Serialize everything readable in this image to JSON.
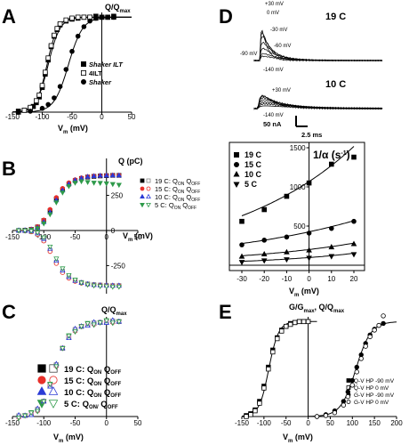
{
  "figure": {
    "panels": {
      "A": {
        "label": "A",
        "ylabel": "Q/Q",
        "ylabel_sub": "max",
        "xlabel": "V",
        "xlabel_sub": "m",
        "xlabel_unit": " (mV)"
      },
      "B": {
        "label": "B",
        "ylabel": "Q (pC)",
        "xlabel": "V",
        "xlabel_sub": "m",
        "xlabel_unit": " (mV)"
      },
      "C": {
        "label": "C",
        "ylabel": "Q/Q",
        "ylabel_sub": "max",
        "xlabel": "V",
        "xlabel_sub": "m",
        "xlabel_unit": " (mV)"
      },
      "D": {
        "label": "D",
        "ylabel": "1/α (s",
        "ylabel_sup": "-1",
        "ylabel_end": ")",
        "xlabel": "V",
        "xlabel_sub": "m",
        "xlabel_unit": " (mV)"
      },
      "E": {
        "label": "E",
        "ylabel": "G/G",
        "ylabel_sub": "max",
        "ylabel_2": ", Q/Q",
        "ylabel_2_sub": "max",
        "xlabel": "V",
        "xlabel_sub": "m",
        "xlabel_unit": " (mV)"
      }
    },
    "traces": {
      "top_title": "19 C",
      "bottom_title": "10 C",
      "top_annotations": [
        "+30 mV",
        "0 mV",
        "-30 mV",
        "-60 mV",
        "-90 mV",
        "-140 mV"
      ],
      "bottom_annotations": [
        "+30 mV",
        "-140 mV"
      ],
      "scale_current": "50 nA",
      "scale_time": "2.5 ms"
    },
    "colors": {
      "red": "#e8302a",
      "blue": "#2b3bd6",
      "green": "#2e9a4a",
      "pink": "#e97bd0",
      "black": "#000000"
    }
  },
  "chart_data": [
    {
      "id": "A",
      "type": "scatter",
      "xlim": [
        -150,
        50
      ],
      "ylim": [
        0,
        1.05
      ],
      "xticks": [
        -150,
        -100,
        -50,
        0,
        50
      ],
      "legend": [
        "Shaker ILT",
        "4ILT",
        "Shaker"
      ],
      "series": [
        {
          "name": "Shaker ILT",
          "marker": "square-filled",
          "x": [
            -140,
            -130,
            -120,
            -115,
            -110,
            -105,
            -100,
            -95,
            -90,
            -85,
            -80,
            -75,
            -70,
            -60,
            -50,
            -40,
            -30,
            -20,
            -10,
            0,
            10,
            20
          ],
          "y": [
            0.01,
            0.02,
            0.04,
            0.06,
            0.1,
            0.16,
            0.26,
            0.4,
            0.55,
            0.69,
            0.8,
            0.87,
            0.92,
            0.96,
            0.98,
            0.99,
            1.0,
            1.0,
            1.01,
            1.0,
            1.0,
            1.01
          ]
        },
        {
          "name": "4ILT",
          "marker": "square-open",
          "x": [
            -140,
            -130,
            -120,
            -110,
            -105,
            -100,
            -95,
            -90,
            -85,
            -80,
            -75,
            -70,
            -60,
            -50,
            -40,
            -30,
            -20,
            -10,
            0,
            10,
            20
          ],
          "y": [
            0.0,
            0.02,
            0.05,
            0.12,
            0.18,
            0.28,
            0.42,
            0.57,
            0.7,
            0.81,
            0.88,
            0.93,
            0.97,
            0.99,
            1.0,
            1.0,
            1.0,
            0.99,
            1.0,
            1.0,
            1.0
          ]
        },
        {
          "name": "Shaker",
          "marker": "circle-filled",
          "x": [
            -140,
            -120,
            -100,
            -90,
            -80,
            -70,
            -60,
            -50,
            -40,
            -30,
            -20,
            -10,
            0,
            10,
            20
          ],
          "y": [
            0.0,
            0.01,
            0.04,
            0.08,
            0.15,
            0.27,
            0.45,
            0.64,
            0.8,
            0.9,
            0.96,
            0.99,
            1.0,
            1.0,
            1.0
          ]
        }
      ]
    },
    {
      "id": "B",
      "type": "scatter",
      "xlim": [
        -150,
        50
      ],
      "ylim": [
        -450,
        500
      ],
      "xticks": [
        -150,
        -100,
        -50,
        0,
        50
      ],
      "yticks": [
        -250,
        0,
        250
      ],
      "legend": [
        {
          "text": "19 C: Q",
          "sub1": "ON",
          "mid": " Q",
          "sub2": "OFF"
        },
        {
          "text": "15 C: Q",
          "sub1": "ON",
          "mid": " Q",
          "sub2": "OFF"
        },
        {
          "text": "10 C: Q",
          "sub1": "ON",
          "mid": " Q",
          "sub2": "OFF"
        },
        {
          "text": "5 C: Q",
          "sub1": "ON",
          "mid": " Q",
          "sub2": "OFF"
        }
      ],
      "x": [
        -140,
        -130,
        -120,
        -110,
        -100,
        -90,
        -80,
        -70,
        -60,
        -50,
        -40,
        -30,
        -20,
        -10,
        0,
        10,
        20
      ],
      "series": [
        {
          "name": "19 C Q_ON",
          "y": [
            0,
            2,
            8,
            25,
            70,
            140,
            225,
            290,
            330,
            355,
            370,
            380,
            385,
            388,
            390,
            392,
            392
          ]
        },
        {
          "name": "19 C Q_OFF",
          "y": [
            0,
            -2,
            -8,
            -25,
            -70,
            -140,
            -225,
            -290,
            -330,
            -355,
            -370,
            -380,
            -385,
            -388,
            -390,
            -392,
            -392
          ]
        },
        {
          "name": "15 C Q_ON",
          "y": [
            0,
            3,
            10,
            28,
            75,
            150,
            235,
            300,
            340,
            362,
            375,
            383,
            388,
            390,
            392,
            393,
            393
          ]
        },
        {
          "name": "15 C Q_OFF",
          "y": [
            0,
            -3,
            -10,
            -28,
            -75,
            -150,
            -235,
            -300,
            -340,
            -362,
            -375,
            -383,
            -388,
            -390,
            -392,
            -393,
            -393
          ]
        },
        {
          "name": "10 C Q_ON",
          "y": [
            0,
            2,
            6,
            20,
            60,
            130,
            215,
            285,
            330,
            358,
            372,
            382,
            387,
            390,
            391,
            392,
            392
          ]
        },
        {
          "name": "10 C Q_OFF",
          "y": [
            0,
            -2,
            -6,
            -20,
            -60,
            -130,
            -215,
            -285,
            -330,
            -358,
            -372,
            -382,
            -387,
            -390,
            -391,
            -392,
            -392
          ]
        },
        {
          "name": "5 C Q_ON",
          "y": [
            0,
            1,
            4,
            15,
            50,
            115,
            200,
            270,
            315,
            340,
            350,
            345,
            340,
            338,
            335,
            330,
            325
          ]
        },
        {
          "name": "5 C Q_OFF",
          "y": [
            0,
            -1,
            -4,
            -15,
            -50,
            -115,
            -200,
            -270,
            -318,
            -350,
            -372,
            -385,
            -392,
            -396,
            -398,
            -400,
            -400
          ]
        }
      ]
    },
    {
      "id": "C",
      "type": "scatter",
      "xlim": [
        -150,
        50
      ],
      "ylim": [
        0,
        1.05
      ],
      "xticks": [
        -150,
        -100,
        -50,
        0,
        50
      ],
      "legend": [
        {
          "text": "19 C: Q",
          "sub1": "ON",
          "mid": " Q",
          "sub2": "OFF"
        },
        {
          "text": "15 C: Q",
          "sub1": "ON",
          "mid": " Q",
          "sub2": "OFF"
        },
        {
          "text": "10 C: Q",
          "sub1": "ON",
          "mid": " Q",
          "sub2": "OFF"
        },
        {
          "text": "5 C: Q",
          "sub1": "ON/",
          "mid": " Q",
          "sub2": "OFF"
        }
      ],
      "x": [
        -140,
        -130,
        -120,
        -110,
        -100,
        -90,
        -80,
        -70,
        -60,
        -50,
        -40,
        -30,
        -20,
        -10,
        0,
        10,
        20
      ],
      "y": [
        0.0,
        0.01,
        0.03,
        0.07,
        0.16,
        0.33,
        0.54,
        0.72,
        0.84,
        0.91,
        0.95,
        0.97,
        0.98,
        0.99,
        1.0,
        1.0,
        1.0
      ]
    },
    {
      "id": "D",
      "type": "scatter",
      "xlim": [
        -30,
        20
      ],
      "ylim": [
        0,
        1500
      ],
      "xticks": [
        -30,
        -20,
        -10,
        0,
        10,
        20
      ],
      "yticks": [
        500,
        1000,
        1500
      ],
      "legend": [
        "19 C",
        "15 C",
        "10 C",
        "5 C"
      ],
      "series": [
        {
          "name": "19 C",
          "marker": "square-filled",
          "x": [
            -30,
            -20,
            -10,
            0,
            10,
            20
          ],
          "y": [
            560,
            710,
            880,
            1050,
            1290,
            1380
          ]
        },
        {
          "name": "15 C",
          "marker": "circle-filled",
          "x": [
            -30,
            -20,
            -10,
            0,
            10,
            20
          ],
          "y": [
            260,
            320,
            360,
            410,
            470,
            560
          ]
        },
        {
          "name": "10 C",
          "marker": "triangle-up-filled",
          "x": [
            -30,
            -20,
            -10,
            0,
            10,
            20
          ],
          "y": [
            110,
            140,
            165,
            190,
            230,
            270
          ]
        },
        {
          "name": "5 C",
          "marker": "triangle-down-filled",
          "x": [
            -30,
            -20,
            -10,
            0,
            10,
            20
          ],
          "y": [
            40,
            60,
            75,
            95,
            115,
            140
          ]
        }
      ]
    },
    {
      "id": "E",
      "type": "scatter",
      "xlim": [
        -150,
        200
      ],
      "ylim": [
        0,
        1.05
      ],
      "xticks": [
        -150,
        -100,
        -50,
        0,
        50,
        100,
        150,
        200
      ],
      "legend": [
        "Q-V  HP -90 mV",
        "Q-V  HP 0 mV",
        "G-V  HP -90 mV",
        "G-V  HP 0 mV"
      ],
      "series": [
        {
          "name": "Q-V  HP -90 mV",
          "marker": "square-filled",
          "x": [
            -140,
            -130,
            -120,
            -110,
            -100,
            -90,
            -80,
            -70,
            -60,
            -50,
            -40,
            -30,
            -20,
            -10,
            0
          ],
          "y": [
            0.01,
            0.03,
            0.07,
            0.16,
            0.32,
            0.52,
            0.7,
            0.83,
            0.91,
            0.95,
            0.98,
            0.99,
            1.0,
            1.0,
            1.0
          ]
        },
        {
          "name": "Q-V  HP 0 mV",
          "marker": "square-open",
          "x": [
            -140,
            -130,
            -120,
            -110,
            -100,
            -90,
            -80,
            -70,
            -60,
            -50,
            -40,
            -30,
            -20,
            -10,
            0
          ],
          "y": [
            0.0,
            0.02,
            0.06,
            0.14,
            0.3,
            0.5,
            0.68,
            0.82,
            0.9,
            0.95,
            0.97,
            0.99,
            1.0,
            1.0,
            1.0
          ]
        },
        {
          "name": "G-V  HP -90 mV",
          "marker": "circle-filled",
          "x": [
            20,
            40,
            60,
            80,
            90,
            100,
            110,
            120,
            130,
            140,
            150,
            160,
            170
          ],
          "y": [
            0.0,
            0.02,
            0.06,
            0.16,
            0.26,
            0.38,
            0.52,
            0.65,
            0.77,
            0.86,
            0.92,
            0.96,
            0.98
          ]
        },
        {
          "name": "G-V  HP 0 mV",
          "marker": "circle-open",
          "x": [
            20,
            40,
            60,
            80,
            90,
            100,
            110,
            120,
            130,
            140,
            150,
            160,
            170
          ],
          "y": [
            0.0,
            0.01,
            0.04,
            0.12,
            0.21,
            0.33,
            0.47,
            0.61,
            0.74,
            0.84,
            0.91,
            0.96,
            1.06
          ]
        }
      ]
    }
  ]
}
